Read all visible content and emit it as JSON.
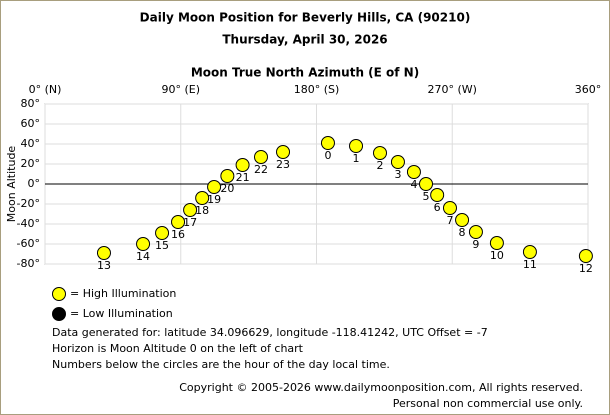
{
  "chart_data": {
    "type": "scatter",
    "title": "Daily Moon Position for Beverly Hills, CA (90210)",
    "subtitle": "Thursday, April 30, 2026",
    "x_label": "Moon True North Azimuth (E of N)",
    "y_label": "Moon Altitude",
    "xlim": [
      0,
      360
    ],
    "xticks": [
      {
        "value": 0,
        "label": "0° (N)"
      },
      {
        "value": 90,
        "label": "90° (E)"
      },
      {
        "value": 180,
        "label": "180° (S)"
      },
      {
        "value": 270,
        "label": "270° (W)"
      },
      {
        "value": 360,
        "label": "360°"
      }
    ],
    "ylim": [
      -80,
      80
    ],
    "yticks": [
      {
        "value": 80,
        "label": "80°"
      },
      {
        "value": 60,
        "label": "60°"
      },
      {
        "value": 40,
        "label": "40°"
      },
      {
        "value": 20,
        "label": "20°"
      },
      {
        "value": 0,
        "label": "0°"
      },
      {
        "value": -20,
        "label": "-20°"
      },
      {
        "value": -40,
        "label": "-40°"
      },
      {
        "value": -60,
        "label": "-60°"
      },
      {
        "value": -80,
        "label": "-80°"
      }
    ],
    "grid": true,
    "horizon_altitude": 0,
    "series": [
      {
        "name": "= High Illumination",
        "color": "#ffff00",
        "x": [
          39.1,
          65.0,
          77.6,
          88.2,
          96.2,
          104.2,
          112.1,
          120.9,
          131.0,
          143.2,
          157.8,
          187.6,
          206.2,
          222.1,
          234.0,
          244.6,
          252.6,
          260.0,
          268.5,
          276.5,
          285.7,
          299.6,
          321.5,
          358.6
        ],
        "y": [
          -69,
          -60,
          -49,
          -38,
          -26,
          -14,
          -3,
          8,
          19,
          27,
          32,
          41,
          38,
          31,
          22,
          12,
          0,
          -11,
          -24,
          -36,
          -48,
          -59,
          -68,
          -72
        ],
        "hours": [
          13,
          14,
          15,
          16,
          17,
          18,
          19,
          20,
          21,
          22,
          23,
          0,
          1,
          2,
          3,
          4,
          5,
          6,
          7,
          8,
          9,
          10,
          11,
          12
        ]
      },
      {
        "name": "= Low Illumination",
        "color": "#000000",
        "x": [],
        "y": [],
        "hours": []
      }
    ],
    "notes": [
      "Data generated for: latitude 34.096629, longitude -118.41242, UTC Offset = -7",
      "Horizon is Moon Altitude 0 on the left of chart",
      "Numbers below the circles are the hour of the day local time."
    ],
    "copyright": [
      "Copyright © 2005-2026 www.dailymoonposition.com, All rights reserved.",
      "Personal non commercial use only."
    ]
  }
}
